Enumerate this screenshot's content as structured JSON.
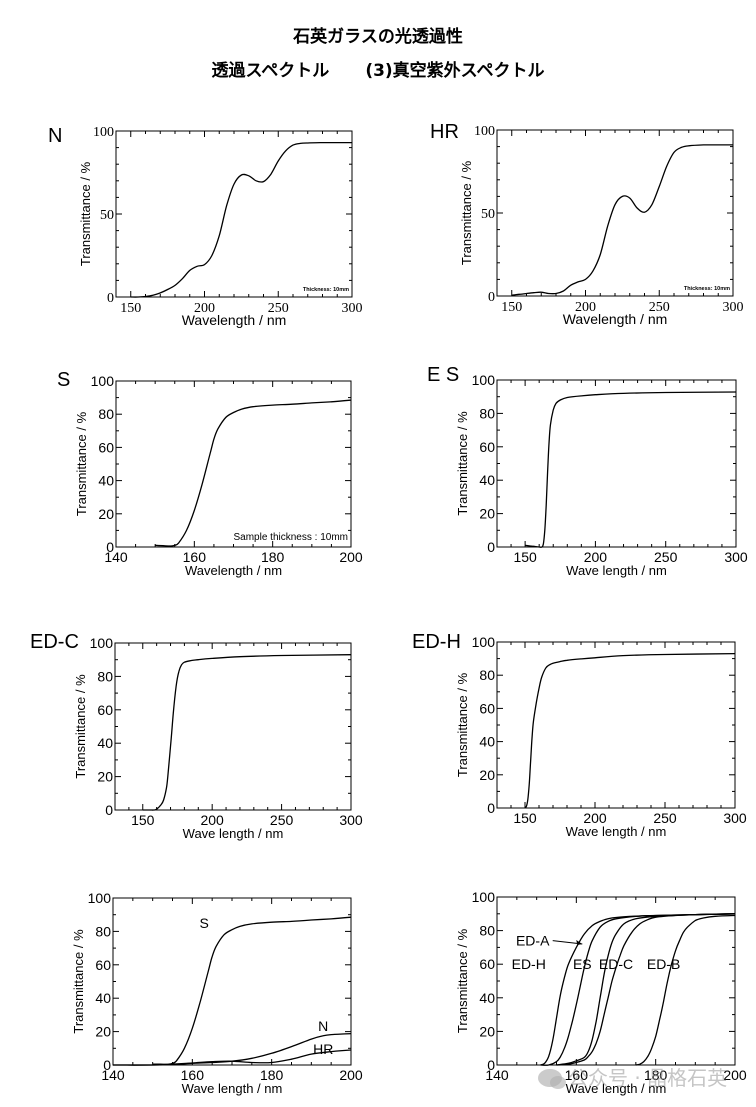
{
  "page": {
    "title_line1": "石英ガラスの光透過性",
    "title_line2_left": "透過スペクトル",
    "title_line2_right": "(3)真空紫外スペクトル",
    "watermark": "公众号 · 晶格石英"
  },
  "chart_data": [
    {
      "id": "N",
      "type": "line",
      "panel_label": "N",
      "title": "",
      "xlabel": "Wavelength / nm",
      "ylabel": "Transmittance / %",
      "xlim": [
        140,
        300
      ],
      "ylim": [
        0,
        100
      ],
      "xticks": [
        150,
        200,
        250,
        300
      ],
      "yticks": [
        0,
        50,
        100
      ],
      "tick_font": "serif",
      "grid": false,
      "annotation": "Thickness: 10mm",
      "series": [
        {
          "name": "N",
          "x": [
            150,
            155,
            160,
            165,
            170,
            175,
            180,
            185,
            190,
            195,
            200,
            205,
            210,
            215,
            220,
            225,
            230,
            235,
            240,
            245,
            250,
            255,
            260,
            265,
            270,
            280,
            290,
            300
          ],
          "y": [
            0,
            0,
            0.3,
            1,
            2.5,
            4.5,
            7,
            11,
            16,
            18.5,
            19.5,
            25,
            37,
            55,
            68,
            73.5,
            73,
            70,
            69.5,
            74,
            82,
            88,
            91.5,
            92.5,
            92.8,
            93,
            93,
            93
          ]
        }
      ]
    },
    {
      "id": "HR",
      "type": "line",
      "panel_label": "HR",
      "title": "",
      "xlabel": "Wavelength / nm",
      "ylabel": "Transmittance / %",
      "xlim": [
        140,
        300
      ],
      "ylim": [
        0,
        100
      ],
      "xticks": [
        150,
        200,
        250,
        300
      ],
      "yticks": [
        0,
        50,
        100
      ],
      "tick_font": "serif",
      "grid": false,
      "annotation": "Thickness: 10mm",
      "series": [
        {
          "name": "HR",
          "x": [
            150,
            155,
            160,
            165,
            170,
            175,
            180,
            185,
            190,
            195,
            200,
            205,
            210,
            215,
            220,
            225,
            230,
            235,
            240,
            245,
            250,
            255,
            260,
            265,
            270,
            280,
            290,
            300
          ],
          "y": [
            0.5,
            1,
            1.5,
            2,
            2.3,
            1.5,
            1.5,
            3,
            6.5,
            8.5,
            10,
            15,
            25,
            42,
            55,
            60,
            59,
            53,
            50.5,
            55,
            66,
            78,
            86.5,
            89.5,
            90.5,
            91,
            91,
            91
          ]
        }
      ]
    },
    {
      "id": "S",
      "type": "line",
      "panel_label": "S",
      "title": "",
      "xlabel": "Wavelength / nm",
      "ylabel": "Transmittance / %",
      "xlim": [
        140,
        200
      ],
      "ylim": [
        0,
        100
      ],
      "xticks": [
        140,
        160,
        180,
        200
      ],
      "yticks": [
        0,
        20,
        40,
        60,
        80,
        100
      ],
      "tick_font": "sans",
      "grid": false,
      "annotation": "Sample thickness : 10mm",
      "series": [
        {
          "name": "S",
          "x": [
            150,
            152,
            154,
            155,
            156,
            158,
            160,
            162,
            164,
            165,
            166,
            168,
            170,
            172,
            175,
            180,
            185,
            190,
            195,
            200
          ],
          "y": [
            1,
            0.8,
            0.6,
            1,
            2.5,
            10,
            22,
            38,
            56,
            65,
            71,
            78,
            81,
            83,
            84.5,
            85.5,
            86,
            86.8,
            87.5,
            88.5
          ]
        }
      ]
    },
    {
      "id": "ES",
      "type": "line",
      "panel_label": "E S",
      "title": "",
      "xlabel": "Wave length / nm",
      "ylabel": "Transmittance / %",
      "xlim": [
        130,
        300
      ],
      "ylim": [
        0,
        100
      ],
      "xticks": [
        150,
        200,
        250,
        300
      ],
      "yticks": [
        0,
        20,
        40,
        60,
        80,
        100
      ],
      "tick_font": "sans",
      "grid": false,
      "annotation": "",
      "series": [
        {
          "name": "ES",
          "x": [
            150,
            155,
            160,
            162,
            163,
            164,
            165,
            166,
            167,
            168,
            170,
            172,
            175,
            180,
            190,
            200,
            220,
            250,
            300
          ],
          "y": [
            1,
            0.5,
            0,
            0,
            2,
            10,
            25,
            45,
            62,
            73,
            82,
            86,
            88,
            89.5,
            90.5,
            91.2,
            92,
            92.5,
            92.8
          ]
        }
      ]
    },
    {
      "id": "ED-C",
      "type": "line",
      "panel_label": "ED-C",
      "title": "",
      "xlabel": "Wave length / nm",
      "ylabel": "Transmittance / %",
      "xlim": [
        130,
        300
      ],
      "ylim": [
        0,
        100
      ],
      "xticks": [
        150,
        200,
        250,
        300
      ],
      "yticks": [
        0,
        20,
        40,
        60,
        80,
        100
      ],
      "tick_font": "sans",
      "grid": false,
      "annotation": "",
      "series": [
        {
          "name": "ED-C",
          "x": [
            150,
            155,
            158,
            160,
            163,
            165,
            167,
            168,
            170,
            172,
            174,
            176,
            178,
            180,
            185,
            190,
            200,
            220,
            250,
            300
          ],
          "y": [
            0,
            0,
            0,
            0.5,
            3,
            6,
            13,
            20,
            38,
            58,
            74,
            83,
            87,
            88.5,
            89.5,
            90,
            90.8,
            91.8,
            92.5,
            93
          ]
        }
      ]
    },
    {
      "id": "ED-H",
      "type": "line",
      "panel_label": "ED-H",
      "title": "",
      "xlabel": "Wave length / nm",
      "ylabel": "Transmittance / %",
      "xlim": [
        130,
        300
      ],
      "ylim": [
        0,
        100
      ],
      "xticks": [
        150,
        200,
        250,
        300
      ],
      "yticks": [
        0,
        20,
        40,
        60,
        80,
        100
      ],
      "tick_font": "sans",
      "grid": false,
      "annotation": "",
      "series": [
        {
          "name": "ED-H",
          "x": [
            150,
            151,
            152,
            153,
            154,
            155,
            156,
            158,
            160,
            162,
            165,
            168,
            170,
            175,
            180,
            190,
            200,
            220,
            250,
            300
          ],
          "y": [
            0,
            1,
            5,
            14,
            28,
            42,
            52,
            63,
            72,
            79,
            84.5,
            86.5,
            87.2,
            88.2,
            89,
            89.8,
            90.5,
            91.8,
            92.5,
            93
          ]
        }
      ]
    },
    {
      "id": "compare-S-N-HR",
      "type": "line",
      "panel_label": "",
      "title": "",
      "xlabel": "Wave length / nm",
      "ylabel": "Transmittance / %",
      "xlim": [
        140,
        200
      ],
      "ylim": [
        0,
        100
      ],
      "xticks": [
        140,
        160,
        180,
        200
      ],
      "yticks": [
        0,
        20,
        40,
        60,
        80,
        100
      ],
      "tick_font": "sans",
      "grid": false,
      "annotation": "",
      "series": [
        {
          "name": "S",
          "label_at": [
            163,
            82
          ],
          "x": [
            150,
            152,
            154,
            155,
            156,
            158,
            160,
            162,
            164,
            165,
            166,
            168,
            170,
            172,
            175,
            180,
            185,
            190,
            195,
            200
          ],
          "y": [
            0.5,
            0.5,
            0.5,
            1,
            2.5,
            10,
            22,
            38,
            56,
            65,
            71,
            78,
            81,
            83,
            84.5,
            85.5,
            86,
            86.8,
            87.5,
            88.5
          ]
        },
        {
          "name": "N",
          "label_at": [
            193,
            20.5
          ],
          "x": [
            140,
            150,
            155,
            160,
            165,
            170,
            175,
            180,
            185,
            190,
            193,
            195,
            200
          ],
          "y": [
            0,
            0,
            0.3,
            1,
            1.5,
            2.3,
            4,
            7,
            11,
            15.5,
            17.5,
            18.2,
            18.8
          ]
        },
        {
          "name": "HR",
          "label_at": [
            193,
            6.5
          ],
          "x": [
            140,
            150,
            155,
            160,
            165,
            170,
            175,
            180,
            185,
            190,
            195,
            200
          ],
          "y": [
            0,
            0,
            0.5,
            1.2,
            2,
            2.3,
            1.5,
            1.5,
            3.5,
            6.5,
            8,
            9
          ]
        }
      ]
    },
    {
      "id": "compare-ED",
      "type": "line",
      "panel_label": "",
      "title": "",
      "xlabel": "Wave length / nm",
      "ylabel": "Transmittance / %",
      "xlim": [
        140,
        200
      ],
      "ylim": [
        0,
        100
      ],
      "xticks": [
        140,
        160,
        180,
        200
      ],
      "yticks": [
        0,
        20,
        40,
        60,
        80,
        100
      ],
      "tick_font": "sans",
      "grid": false,
      "annotation": "",
      "labels": [
        {
          "text": "ED-A",
          "at": [
            149,
            74
          ],
          "arrow_to": [
            161.5,
            72
          ]
        },
        {
          "text": "ED-H",
          "at": [
            148,
            60
          ]
        },
        {
          "text": "ES",
          "at": [
            161.5,
            60
          ]
        },
        {
          "text": "ED-C",
          "at": [
            170,
            60
          ]
        },
        {
          "text": "ED-B",
          "at": [
            182,
            60
          ]
        }
      ],
      "series": [
        {
          "name": "ED-H",
          "x": [
            151,
            152,
            153,
            154,
            155,
            156,
            157,
            158,
            160,
            162,
            164,
            166,
            168,
            170,
            175,
            180,
            190,
            200
          ],
          "y": [
            0,
            1,
            5,
            14,
            28,
            42,
            52,
            60,
            70,
            78,
            83,
            85.5,
            87,
            87.8,
            88.6,
            89,
            89.5,
            90
          ]
        },
        {
          "name": "ED-A",
          "x": [
            151,
            153,
            155,
            156,
            157,
            158,
            159,
            160,
            161,
            162,
            163,
            164,
            166,
            168,
            170,
            175,
            180,
            190,
            200
          ],
          "y": [
            0,
            0,
            2,
            5,
            10,
            17,
            26,
            36,
            47,
            58,
            67,
            74,
            82,
            85.5,
            87,
            88.5,
            89,
            89.5,
            90
          ]
        },
        {
          "name": "ES",
          "x": [
            155,
            158,
            160,
            162,
            163,
            164,
            165,
            166,
            167,
            168,
            169,
            170,
            172,
            175,
            180,
            190,
            200
          ],
          "y": [
            0,
            1,
            2.5,
            4.5,
            8,
            15,
            26,
            40,
            54,
            65,
            73,
            78,
            84,
            87,
            88.5,
            89.5,
            90
          ]
        },
        {
          "name": "ED-C",
          "x": [
            155,
            158,
            160,
            162,
            163,
            164,
            165,
            166,
            167,
            168,
            169,
            170,
            171,
            172,
            174,
            176,
            178,
            180,
            185,
            190,
            200
          ],
          "y": [
            0,
            0.5,
            1.5,
            3,
            5,
            8,
            13,
            20,
            30,
            40,
            50,
            58,
            65,
            71,
            79,
            84,
            86.5,
            88,
            89,
            89.5,
            90
          ]
        },
        {
          "name": "ED-B",
          "x": [
            175,
            176,
            177,
            178,
            179,
            180,
            181,
            182,
            183,
            184,
            185,
            186,
            187,
            188,
            190,
            192,
            195,
            200
          ],
          "y": [
            0,
            0.5,
            2,
            5,
            10,
            17,
            27,
            38,
            50,
            60,
            68,
            74,
            79,
            82,
            86,
            87.5,
            88.5,
            89
          ]
        }
      ]
    }
  ]
}
